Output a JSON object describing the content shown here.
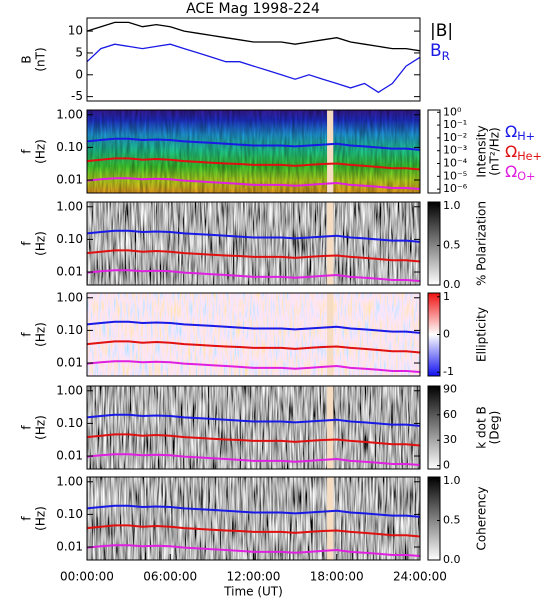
{
  "chart_data": [
    {
      "type": "line",
      "title": "ACE Mag 1998-224",
      "ylabel": [
        "B",
        "(nT)"
      ],
      "x": [
        0,
        1,
        2,
        3,
        4,
        5,
        6,
        7,
        8,
        9,
        10,
        11,
        12,
        13,
        14,
        15,
        16,
        17,
        18,
        19,
        20,
        21,
        22,
        23,
        24
      ],
      "xlim": [
        0,
        24
      ],
      "ylim": [
        -6,
        13
      ],
      "yticks": [
        -5,
        0,
        5,
        10
      ],
      "series": [
        {
          "name": "|B|",
          "color": "#000000",
          "values": [
            10,
            11,
            12,
            12,
            11,
            11.5,
            11,
            10,
            9.5,
            9,
            8.5,
            8,
            7.5,
            7.5,
            7.5,
            7,
            7.5,
            8,
            8.5,
            7.5,
            7,
            6.5,
            6,
            6,
            5.5
          ]
        },
        {
          "name": "B",
          "subscript": "R",
          "color": "#1a1ae6",
          "values": [
            3,
            6,
            7,
            6.5,
            6,
            6.5,
            7,
            6,
            5,
            4,
            3,
            3,
            2,
            1,
            0,
            -1,
            0,
            -1,
            -2,
            -3,
            -2,
            -4,
            -2,
            2,
            4
          ]
        }
      ]
    },
    {
      "type": "spectrogram",
      "ylabel": [
        "f",
        "(Hz)"
      ],
      "log_y": true,
      "legend": true,
      "x": [
        0,
        1,
        2,
        3,
        4,
        5,
        6,
        7,
        8,
        9,
        10,
        11,
        12,
        13,
        14,
        15,
        16,
        17,
        18,
        19,
        20,
        21,
        22,
        23,
        24
      ],
      "xlim": [
        0,
        24
      ],
      "ylim": [
        0.004,
        1.4
      ],
      "yticks": [
        {
          "value": 1,
          "label": "1.00"
        },
        {
          "value": 0.1,
          "label": "0.10"
        },
        {
          "value": 0.01,
          "label": "0.01"
        }
      ],
      "colorbar": {
        "label": [
          "Intensity",
          "(nT²/Hz)"
        ],
        "log": true,
        "lim": [
          5e-07,
          1.5
        ],
        "colormap": "rainbow",
        "ticks": [
          {
            "value": 1,
            "label": "10⁰"
          },
          {
            "value": 0.1,
            "label": "10⁻¹"
          },
          {
            "value": 0.01,
            "label": "10⁻²"
          },
          {
            "value": 0.001,
            "label": "10⁻³"
          },
          {
            "value": 0.0001,
            "label": "10⁻⁴"
          },
          {
            "value": 1e-05,
            "label": "10⁻⁵"
          },
          {
            "value": 1e-06,
            "label": "10⁻⁶"
          }
        ]
      },
      "series": [
        {
          "name": "Ω",
          "subscript": "H+",
          "color": "#1a1ae6",
          "values": [
            0.153,
            0.168,
            0.183,
            0.183,
            0.168,
            0.175,
            0.168,
            0.153,
            0.145,
            0.137,
            0.13,
            0.122,
            0.114,
            0.114,
            0.114,
            0.107,
            0.114,
            0.122,
            0.13,
            0.114,
            0.107,
            0.099,
            0.092,
            0.092,
            0.084
          ]
        },
        {
          "name": "Ω",
          "subscript": "He+",
          "color": "#e01010",
          "values": [
            0.038,
            0.042,
            0.046,
            0.046,
            0.042,
            0.044,
            0.042,
            0.038,
            0.036,
            0.034,
            0.032,
            0.031,
            0.029,
            0.029,
            0.029,
            0.027,
            0.029,
            0.031,
            0.032,
            0.029,
            0.027,
            0.025,
            0.023,
            0.023,
            0.021
          ]
        },
        {
          "name": "Ω",
          "subscript": "O+",
          "color": "#e020e0",
          "values": [
            0.0096,
            0.0105,
            0.0114,
            0.0114,
            0.0105,
            0.0109,
            0.0105,
            0.0096,
            0.0091,
            0.0086,
            0.0081,
            0.0076,
            0.0071,
            0.0071,
            0.0071,
            0.0067,
            0.0071,
            0.0076,
            0.0081,
            0.0071,
            0.0067,
            0.0062,
            0.0057,
            0.0057,
            0.0053
          ]
        }
      ]
    },
    {
      "type": "spectrogram",
      "ylabel": [
        "f",
        "(Hz)"
      ],
      "log_y": true,
      "x": [
        0,
        1,
        2,
        3,
        4,
        5,
        6,
        7,
        8,
        9,
        10,
        11,
        12,
        13,
        14,
        15,
        16,
        17,
        18,
        19,
        20,
        21,
        22,
        23,
        24
      ],
      "xlim": [
        0,
        24
      ],
      "ylim": [
        0.004,
        1.4
      ],
      "yticks": [
        {
          "value": 1,
          "label": "1.00"
        },
        {
          "value": 0.1,
          "label": "0.10"
        },
        {
          "value": 0.01,
          "label": "0.01"
        }
      ],
      "colorbar": {
        "label": [
          "% Polarization"
        ],
        "log": false,
        "lim": [
          0,
          1.05
        ],
        "colormap": "gray",
        "ticks": [
          {
            "value": 0,
            "label": "0.0"
          },
          0.5,
          {
            "value": 1,
            "label": "1.0"
          }
        ]
      },
      "series": [
        {
          "color": "#1a1ae6",
          "values": [
            0.153,
            0.168,
            0.183,
            0.183,
            0.168,
            0.175,
            0.168,
            0.153,
            0.145,
            0.137,
            0.13,
            0.122,
            0.114,
            0.114,
            0.114,
            0.107,
            0.114,
            0.122,
            0.13,
            0.114,
            0.107,
            0.099,
            0.092,
            0.092,
            0.084
          ]
        },
        {
          "color": "#e01010",
          "values": [
            0.038,
            0.042,
            0.046,
            0.046,
            0.042,
            0.044,
            0.042,
            0.038,
            0.036,
            0.034,
            0.032,
            0.031,
            0.029,
            0.029,
            0.029,
            0.027,
            0.029,
            0.031,
            0.032,
            0.029,
            0.027,
            0.025,
            0.023,
            0.023,
            0.021
          ]
        },
        {
          "color": "#e020e0",
          "values": [
            0.0096,
            0.0105,
            0.0114,
            0.0114,
            0.0105,
            0.0109,
            0.0105,
            0.0096,
            0.0091,
            0.0086,
            0.0081,
            0.0076,
            0.0071,
            0.0071,
            0.0071,
            0.0067,
            0.0071,
            0.0076,
            0.0081,
            0.0071,
            0.0067,
            0.0062,
            0.0057,
            0.0057,
            0.0053
          ]
        }
      ]
    },
    {
      "type": "spectrogram",
      "ylabel": [
        "f",
        "(Hz)"
      ],
      "log_y": true,
      "x": [
        0,
        1,
        2,
        3,
        4,
        5,
        6,
        7,
        8,
        9,
        10,
        11,
        12,
        13,
        14,
        15,
        16,
        17,
        18,
        19,
        20,
        21,
        22,
        23,
        24
      ],
      "xlim": [
        0,
        24
      ],
      "ylim": [
        0.004,
        1.4
      ],
      "yticks": [
        {
          "value": 1,
          "label": "1.00"
        },
        {
          "value": 0.1,
          "label": "0.10"
        },
        {
          "value": 0.01,
          "label": "0.01"
        }
      ],
      "colorbar": {
        "label": [
          "Ellipticity"
        ],
        "log": false,
        "lim": [
          -1.1,
          1.1
        ],
        "colormap": "bwr",
        "ticks": [
          -1,
          0,
          1
        ]
      },
      "series": [
        {
          "color": "#1a1ae6",
          "values": [
            0.153,
            0.168,
            0.183,
            0.183,
            0.168,
            0.175,
            0.168,
            0.153,
            0.145,
            0.137,
            0.13,
            0.122,
            0.114,
            0.114,
            0.114,
            0.107,
            0.114,
            0.122,
            0.13,
            0.114,
            0.107,
            0.099,
            0.092,
            0.092,
            0.084
          ]
        },
        {
          "color": "#e01010",
          "values": [
            0.038,
            0.042,
            0.046,
            0.046,
            0.042,
            0.044,
            0.042,
            0.038,
            0.036,
            0.034,
            0.032,
            0.031,
            0.029,
            0.029,
            0.029,
            0.027,
            0.029,
            0.031,
            0.032,
            0.029,
            0.027,
            0.025,
            0.023,
            0.023,
            0.021
          ]
        },
        {
          "color": "#e020e0",
          "values": [
            0.0096,
            0.0105,
            0.0114,
            0.0114,
            0.0105,
            0.0109,
            0.0105,
            0.0096,
            0.0091,
            0.0086,
            0.0081,
            0.0076,
            0.0071,
            0.0071,
            0.0071,
            0.0067,
            0.0071,
            0.0076,
            0.0081,
            0.0071,
            0.0067,
            0.0062,
            0.0057,
            0.0057,
            0.0053
          ]
        }
      ]
    },
    {
      "type": "spectrogram",
      "ylabel": [
        "f",
        "(Hz)"
      ],
      "log_y": true,
      "x": [
        0,
        1,
        2,
        3,
        4,
        5,
        6,
        7,
        8,
        9,
        10,
        11,
        12,
        13,
        14,
        15,
        16,
        17,
        18,
        19,
        20,
        21,
        22,
        23,
        24
      ],
      "xlim": [
        0,
        24
      ],
      "ylim": [
        0.004,
        1.4
      ],
      "yticks": [
        {
          "value": 1,
          "label": "1.00"
        },
        {
          "value": 0.1,
          "label": "0.10"
        },
        {
          "value": 0.01,
          "label": "0.01"
        }
      ],
      "colorbar": {
        "label": [
          "k dot B",
          "(Deg)"
        ],
        "log": false,
        "lim": [
          -4,
          94
        ],
        "colormap": "gray",
        "ticks": [
          0,
          30,
          60,
          90
        ]
      },
      "series": [
        {
          "color": "#1a1ae6",
          "values": [
            0.153,
            0.168,
            0.183,
            0.183,
            0.168,
            0.175,
            0.168,
            0.153,
            0.145,
            0.137,
            0.13,
            0.122,
            0.114,
            0.114,
            0.114,
            0.107,
            0.114,
            0.122,
            0.13,
            0.114,
            0.107,
            0.099,
            0.092,
            0.092,
            0.084
          ]
        },
        {
          "color": "#e01010",
          "values": [
            0.038,
            0.042,
            0.046,
            0.046,
            0.042,
            0.044,
            0.042,
            0.038,
            0.036,
            0.034,
            0.032,
            0.031,
            0.029,
            0.029,
            0.029,
            0.027,
            0.029,
            0.031,
            0.032,
            0.029,
            0.027,
            0.025,
            0.023,
            0.023,
            0.021
          ]
        },
        {
          "color": "#e020e0",
          "values": [
            0.0096,
            0.0105,
            0.0114,
            0.0114,
            0.0105,
            0.0109,
            0.0105,
            0.0096,
            0.0091,
            0.0086,
            0.0081,
            0.0076,
            0.0071,
            0.0071,
            0.0071,
            0.0067,
            0.0071,
            0.0076,
            0.0081,
            0.0071,
            0.0067,
            0.0062,
            0.0057,
            0.0057,
            0.0053
          ]
        }
      ]
    },
    {
      "type": "spectrogram",
      "ylabel": [
        "f",
        "(Hz)"
      ],
      "log_y": true,
      "xlabel": "Time (UT)",
      "x": [
        0,
        1,
        2,
        3,
        4,
        5,
        6,
        7,
        8,
        9,
        10,
        11,
        12,
        13,
        14,
        15,
        16,
        17,
        18,
        19,
        20,
        21,
        22,
        23,
        24
      ],
      "xlim": [
        0,
        24
      ],
      "ylim": [
        0.004,
        1.4
      ],
      "xticks": [
        {
          "value": 0,
          "label": "00:00:00"
        },
        {
          "value": 6,
          "label": "06:00:00"
        },
        {
          "value": 12,
          "label": "12:00:00"
        },
        {
          "value": 18,
          "label": "18:00:00"
        },
        {
          "value": 24,
          "label": "24:00:00"
        }
      ],
      "yticks": [
        {
          "value": 1,
          "label": "1.00"
        },
        {
          "value": 0.1,
          "label": "0.10"
        },
        {
          "value": 0.01,
          "label": "0.01"
        }
      ],
      "colorbar": {
        "label": [
          "Coherency"
        ],
        "log": false,
        "lim": [
          0,
          1.05
        ],
        "colormap": "gray",
        "ticks": [
          {
            "value": 0,
            "label": "0.0"
          },
          0.5,
          {
            "value": 1,
            "label": "1.0"
          }
        ]
      },
      "series": [
        {
          "color": "#1a1ae6",
          "values": [
            0.153,
            0.168,
            0.183,
            0.183,
            0.168,
            0.175,
            0.168,
            0.153,
            0.145,
            0.137,
            0.13,
            0.122,
            0.114,
            0.114,
            0.114,
            0.107,
            0.114,
            0.122,
            0.13,
            0.114,
            0.107,
            0.099,
            0.092,
            0.092,
            0.084
          ]
        },
        {
          "color": "#e01010",
          "values": [
            0.038,
            0.042,
            0.046,
            0.046,
            0.042,
            0.044,
            0.042,
            0.038,
            0.036,
            0.034,
            0.032,
            0.031,
            0.029,
            0.029,
            0.029,
            0.027,
            0.029,
            0.031,
            0.032,
            0.029,
            0.027,
            0.025,
            0.023,
            0.023,
            0.021
          ]
        },
        {
          "color": "#e020e0",
          "values": [
            0.0096,
            0.0105,
            0.0114,
            0.0114,
            0.0105,
            0.0109,
            0.0105,
            0.0096,
            0.0091,
            0.0086,
            0.0081,
            0.0076,
            0.0071,
            0.0071,
            0.0071,
            0.0067,
            0.0071,
            0.0076,
            0.0081,
            0.0071,
            0.0067,
            0.0062,
            0.0057,
            0.0057,
            0.0053
          ]
        }
      ]
    }
  ]
}
